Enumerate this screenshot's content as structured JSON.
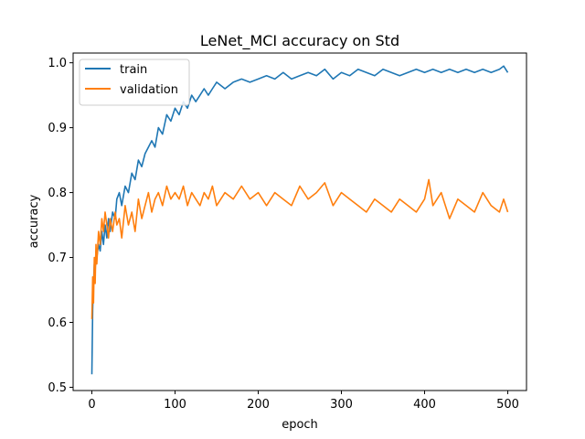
{
  "chart_data": {
    "type": "line",
    "title": "LeNet_MCI accuracy on Std",
    "xlabel": "epoch",
    "ylabel": "accuracy",
    "xlim": [
      -22.5,
      522.5
    ],
    "ylim": [
      0.495,
      1.015
    ],
    "xticks": [
      0,
      100,
      200,
      300,
      400,
      500
    ],
    "xtick_labels": [
      "0",
      "100",
      "200",
      "300",
      "400",
      "500"
    ],
    "yticks": [
      0.5,
      0.6,
      0.7,
      0.8,
      0.9,
      1.0
    ],
    "ytick_labels": [
      "0.5",
      "0.6",
      "0.7",
      "0.8",
      "0.9",
      "1.0"
    ],
    "grid": false,
    "legend_position": "top-left",
    "series": [
      {
        "name": "train",
        "color": "#1f77b4",
        "x": [
          0,
          1,
          2,
          3,
          4,
          5,
          6,
          8,
          10,
          12,
          14,
          16,
          18,
          20,
          22,
          25,
          28,
          30,
          33,
          36,
          40,
          44,
          48,
          52,
          56,
          60,
          64,
          68,
          72,
          76,
          80,
          85,
          90,
          95,
          100,
          105,
          110,
          115,
          120,
          125,
          130,
          135,
          140,
          145,
          150,
          160,
          170,
          180,
          190,
          200,
          210,
          220,
          230,
          240,
          250,
          260,
          270,
          280,
          290,
          300,
          310,
          320,
          330,
          340,
          350,
          360,
          370,
          380,
          390,
          400,
          410,
          420,
          430,
          440,
          450,
          460,
          470,
          480,
          490,
          495,
          500
        ],
        "y": [
          0.52,
          0.62,
          0.66,
          0.69,
          0.68,
          0.71,
          0.7,
          0.72,
          0.71,
          0.74,
          0.72,
          0.75,
          0.73,
          0.76,
          0.74,
          0.77,
          0.76,
          0.79,
          0.8,
          0.78,
          0.81,
          0.8,
          0.83,
          0.82,
          0.85,
          0.84,
          0.86,
          0.87,
          0.88,
          0.87,
          0.9,
          0.89,
          0.92,
          0.91,
          0.93,
          0.92,
          0.94,
          0.93,
          0.95,
          0.94,
          0.95,
          0.96,
          0.95,
          0.96,
          0.97,
          0.96,
          0.97,
          0.975,
          0.97,
          0.975,
          0.98,
          0.975,
          0.985,
          0.975,
          0.98,
          0.985,
          0.98,
          0.99,
          0.975,
          0.985,
          0.98,
          0.99,
          0.985,
          0.98,
          0.99,
          0.985,
          0.98,
          0.985,
          0.99,
          0.985,
          0.99,
          0.985,
          0.99,
          0.985,
          0.99,
          0.985,
          0.99,
          0.985,
          0.99,
          0.995,
          0.985
        ]
      },
      {
        "name": "validation",
        "color": "#ff7f0e",
        "x": [
          0,
          1,
          2,
          3,
          4,
          5,
          6,
          8,
          10,
          12,
          14,
          16,
          18,
          20,
          22,
          25,
          28,
          30,
          33,
          36,
          40,
          44,
          48,
          52,
          56,
          60,
          64,
          68,
          72,
          76,
          80,
          85,
          90,
          95,
          100,
          105,
          110,
          115,
          120,
          125,
          130,
          135,
          140,
          145,
          150,
          160,
          170,
          180,
          190,
          200,
          210,
          220,
          230,
          240,
          250,
          260,
          270,
          280,
          290,
          300,
          310,
          320,
          330,
          340,
          350,
          360,
          370,
          380,
          390,
          400,
          405,
          410,
          420,
          430,
          440,
          450,
          460,
          470,
          480,
          490,
          495,
          500
        ],
        "y": [
          0.605,
          0.67,
          0.63,
          0.7,
          0.66,
          0.72,
          0.69,
          0.74,
          0.72,
          0.76,
          0.74,
          0.77,
          0.75,
          0.73,
          0.76,
          0.74,
          0.77,
          0.75,
          0.76,
          0.73,
          0.78,
          0.75,
          0.77,
          0.74,
          0.79,
          0.76,
          0.78,
          0.8,
          0.77,
          0.79,
          0.8,
          0.78,
          0.81,
          0.79,
          0.8,
          0.79,
          0.81,
          0.78,
          0.8,
          0.79,
          0.78,
          0.8,
          0.79,
          0.81,
          0.78,
          0.8,
          0.79,
          0.81,
          0.79,
          0.8,
          0.78,
          0.8,
          0.79,
          0.78,
          0.81,
          0.79,
          0.8,
          0.815,
          0.78,
          0.8,
          0.79,
          0.78,
          0.77,
          0.79,
          0.78,
          0.77,
          0.79,
          0.78,
          0.77,
          0.79,
          0.82,
          0.78,
          0.8,
          0.76,
          0.79,
          0.78,
          0.77,
          0.8,
          0.78,
          0.77,
          0.79,
          0.77
        ]
      }
    ]
  }
}
